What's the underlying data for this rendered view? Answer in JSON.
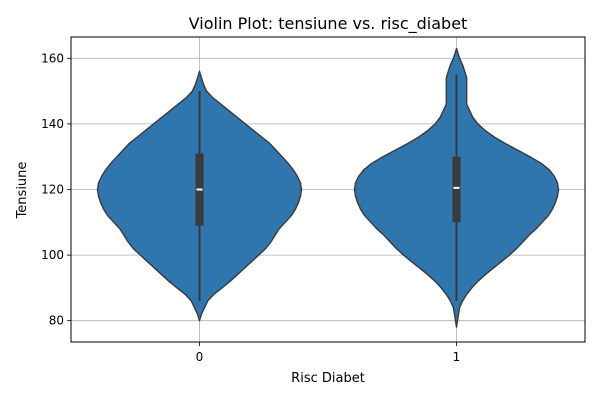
{
  "chart_data": {
    "type": "violin",
    "title": "Violin Plot: tensiune vs. risc_diabet",
    "xlabel": "Risc Diabet",
    "ylabel": "Tensiune",
    "categories": [
      "0",
      "1"
    ],
    "yticks": [
      80,
      100,
      120,
      140,
      160
    ],
    "ylim": [
      73.5,
      166.5
    ],
    "grid": true,
    "color": "#2f75ae",
    "outline_color": "#3a3a3a",
    "violins": [
      {
        "category": "0",
        "min": 86,
        "q1": 109,
        "median": 120,
        "q3": 131,
        "max": 150,
        "density": [
          [
            80,
            0.0
          ],
          [
            82,
            0.02
          ],
          [
            84,
            0.05
          ],
          [
            86,
            0.08
          ],
          [
            88,
            0.14
          ],
          [
            90,
            0.22
          ],
          [
            92,
            0.3
          ],
          [
            94,
            0.37
          ],
          [
            96,
            0.44
          ],
          [
            98,
            0.51
          ],
          [
            100,
            0.58
          ],
          [
            102,
            0.65
          ],
          [
            104,
            0.7
          ],
          [
            106,
            0.74
          ],
          [
            108,
            0.78
          ],
          [
            110,
            0.84
          ],
          [
            112,
            0.9
          ],
          [
            114,
            0.94
          ],
          [
            116,
            0.97
          ],
          [
            118,
            0.99
          ],
          [
            120,
            1.0
          ],
          [
            122,
            0.99
          ],
          [
            124,
            0.96
          ],
          [
            126,
            0.92
          ],
          [
            128,
            0.87
          ],
          [
            130,
            0.81
          ],
          [
            132,
            0.75
          ],
          [
            134,
            0.69
          ],
          [
            136,
            0.61
          ],
          [
            138,
            0.53
          ],
          [
            140,
            0.45
          ],
          [
            142,
            0.37
          ],
          [
            144,
            0.29
          ],
          [
            146,
            0.21
          ],
          [
            148,
            0.13
          ],
          [
            150,
            0.07
          ],
          [
            152,
            0.04
          ],
          [
            154,
            0.02
          ],
          [
            156,
            0.0
          ]
        ]
      },
      {
        "category": "1",
        "min": 86,
        "q1": 110,
        "median": 120.5,
        "q3": 130,
        "max": 155,
        "density": [
          [
            78,
            0.0
          ],
          [
            80,
            0.01
          ],
          [
            82,
            0.02
          ],
          [
            84,
            0.03
          ],
          [
            86,
            0.06
          ],
          [
            88,
            0.1
          ],
          [
            90,
            0.15
          ],
          [
            92,
            0.21
          ],
          [
            94,
            0.28
          ],
          [
            96,
            0.36
          ],
          [
            98,
            0.44
          ],
          [
            100,
            0.52
          ],
          [
            102,
            0.59
          ],
          [
            104,
            0.65
          ],
          [
            106,
            0.71
          ],
          [
            108,
            0.78
          ],
          [
            110,
            0.84
          ],
          [
            112,
            0.9
          ],
          [
            114,
            0.94
          ],
          [
            116,
            0.97
          ],
          [
            118,
            0.99
          ],
          [
            120,
            1.0
          ],
          [
            122,
            0.99
          ],
          [
            124,
            0.96
          ],
          [
            126,
            0.91
          ],
          [
            128,
            0.83
          ],
          [
            130,
            0.72
          ],
          [
            132,
            0.6
          ],
          [
            134,
            0.48
          ],
          [
            136,
            0.37
          ],
          [
            138,
            0.28
          ],
          [
            140,
            0.21
          ],
          [
            142,
            0.16
          ],
          [
            144,
            0.13
          ],
          [
            146,
            0.1
          ],
          [
            148,
            0.1
          ],
          [
            150,
            0.1
          ],
          [
            152,
            0.1
          ],
          [
            154,
            0.1
          ],
          [
            156,
            0.08
          ],
          [
            158,
            0.06
          ],
          [
            160,
            0.03
          ],
          [
            162,
            0.01
          ],
          [
            163,
            0.0
          ]
        ]
      }
    ]
  }
}
